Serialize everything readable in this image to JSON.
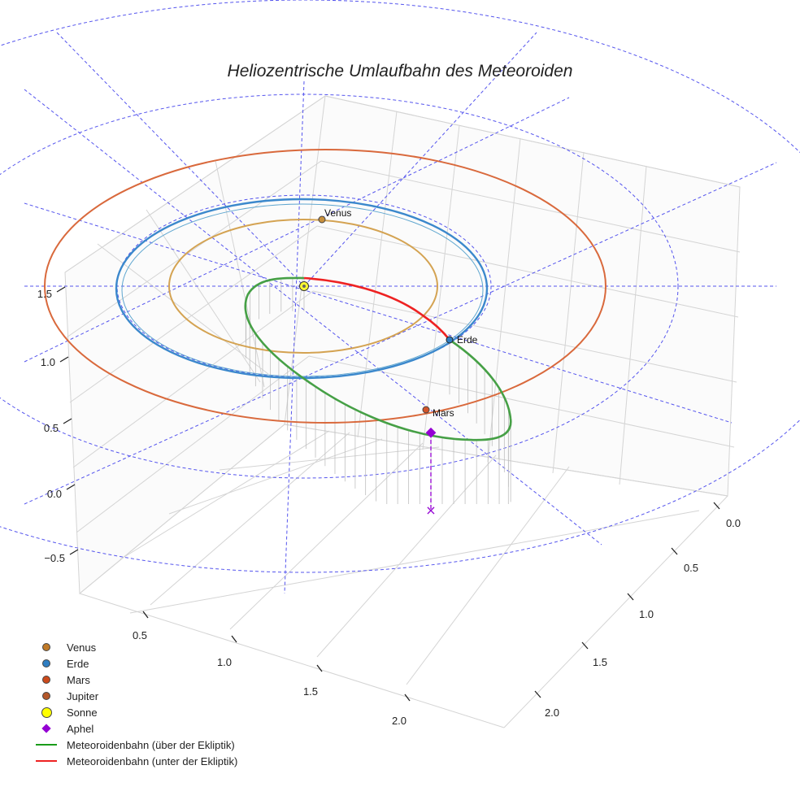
{
  "chart_data": {
    "type": "3d-line",
    "title": "Heliozentrische Umlaufbahn des Meteoroiden",
    "axes": {
      "x_ticks": [
        "0.5",
        "1.0",
        "1.5",
        "2.0"
      ],
      "y_ticks": [
        "0.0",
        "0.5",
        "1.0",
        "1.5",
        "2.0"
      ],
      "z_ticks": [
        "1.5",
        "1.0",
        "0.5",
        "0.0",
        "−0.5"
      ]
    },
    "planets": [
      {
        "name": "Venus",
        "label": "Venus",
        "orbit_radius_au": 0.72,
        "color": "#c8903c"
      },
      {
        "name": "Erde",
        "label": "Erde",
        "orbit_radius_au": 1.0,
        "color": "#2f7ec2"
      },
      {
        "name": "Mars",
        "label": "Mars",
        "orbit_radius_au": 1.52,
        "color": "#d2542a"
      }
    ],
    "sun": {
      "name": "Sonne",
      "color": "#ffff33"
    },
    "aphel": {
      "name": "Aphel",
      "color": "#9400d3"
    },
    "meteoroid_orbit": {
      "above_ecliptic": {
        "name": "Meteoroidenbahn (über der Ekliptik)",
        "color": "#3a9c3a"
      },
      "below_ecliptic": {
        "name": "Meteoroidenbahn (unter der Ekliptik)",
        "color": "#ee2222"
      }
    },
    "legend": [
      {
        "label": "Venus",
        "symbol": "dot",
        "color": "#c07a28"
      },
      {
        "label": "Erde",
        "symbol": "dot",
        "color": "#2f7ec2"
      },
      {
        "label": "Mars",
        "symbol": "dot",
        "color": "#cc4a1c"
      },
      {
        "label": "Jupiter",
        "symbol": "dot",
        "color": "#b4582a"
      },
      {
        "label": "Sonne",
        "symbol": "dot-big",
        "color": "#ffff00"
      },
      {
        "label": "Aphel",
        "symbol": "diamond",
        "color": "#9400d3"
      },
      {
        "label": "Meteoroidenbahn (über der Ekliptik)",
        "symbol": "line",
        "color": "#1a9c1a"
      },
      {
        "label": "Meteoroidenbahn (unter der Ekliptik)",
        "symbol": "line",
        "color": "#ee2222"
      }
    ]
  }
}
